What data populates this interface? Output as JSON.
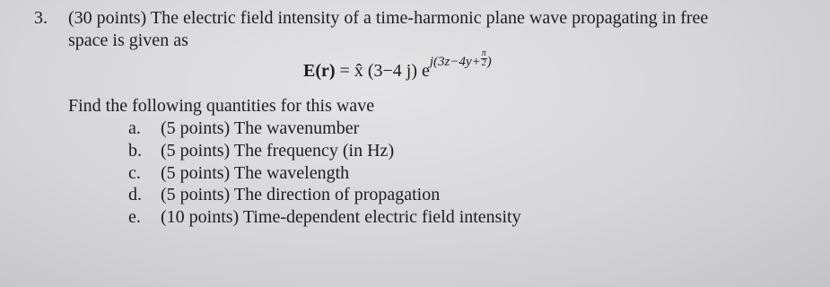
{
  "problem": {
    "number": "3.",
    "intro_line1": "(30 points) The electric field intensity of a time-harmonic plane wave propagating in free",
    "intro_line2": "space is given as"
  },
  "equation": {
    "lhs": "E(r)",
    "equals": "=",
    "rhs": "x̂ (3−4 j) e",
    "exponent_start": "j(3z−4y+",
    "fraction_numerator": "π",
    "fraction_denominator": "2",
    "exponent_end": ")"
  },
  "prompt": "Find the following quantities for this wave",
  "items": [
    {
      "label": "a.",
      "text": "(5 points) The wavenumber"
    },
    {
      "label": "b.",
      "text": "(5 points) The frequency (in Hz)"
    },
    {
      "label": "c.",
      "text": "(5 points) The wavelength"
    },
    {
      "label": "d.",
      "text": "(5 points) The direction of propagation"
    },
    {
      "label": "e.",
      "text": "(10 points) Time-dependent electric field intensity"
    }
  ]
}
